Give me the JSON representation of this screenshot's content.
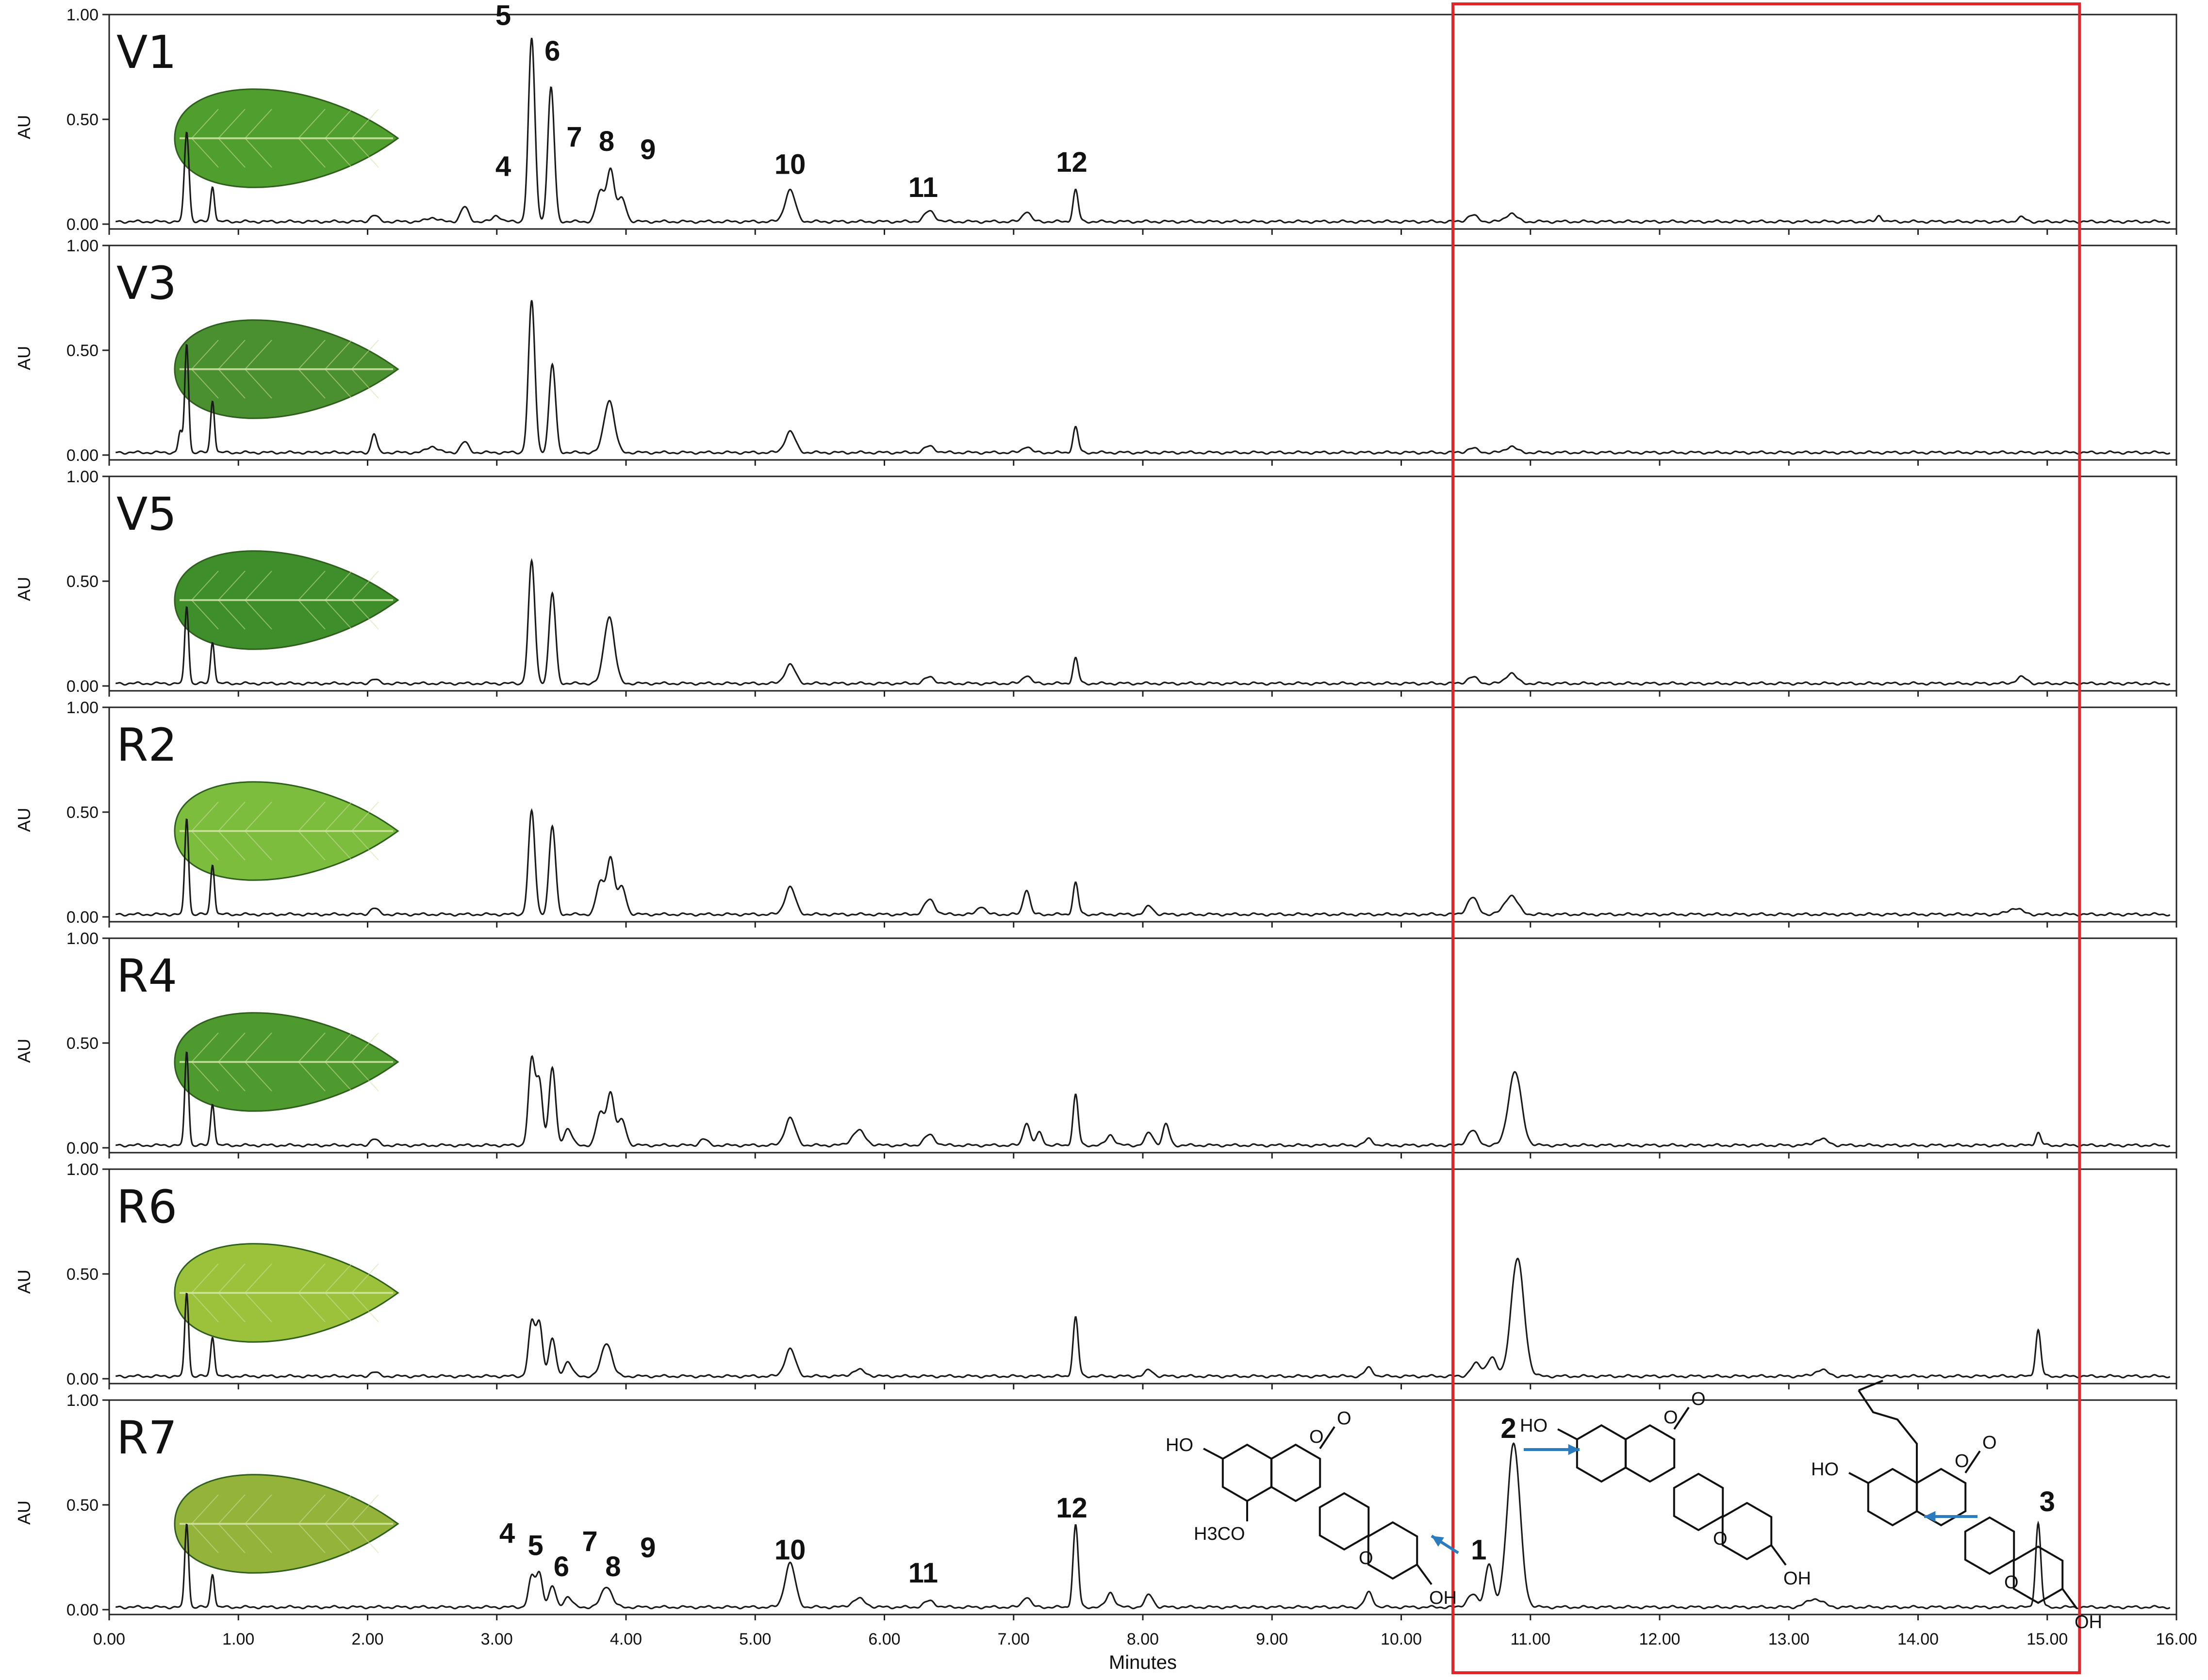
{
  "chart_data": {
    "type": "line",
    "xlabel": "Minutes",
    "ylabel": "AU",
    "xlim": [
      0,
      16
    ],
    "ylim": [
      0,
      1
    ],
    "x_ticks": [
      "0.00",
      "1.00",
      "2.00",
      "3.00",
      "4.00",
      "5.00",
      "6.00",
      "7.00",
      "8.00",
      "9.00",
      "10.00",
      "11.00",
      "12.00",
      "13.00",
      "14.00",
      "15.00",
      "16.00"
    ],
    "y_ticks": [
      "0.00",
      "0.50",
      "1.00"
    ],
    "highlight": {
      "x_range": [
        10.4,
        15.25
      ],
      "color": "#e0262b"
    },
    "panels": [
      {
        "name": "V1",
        "leaf_color": "#4f9e2e",
        "peaks": [
          [
            0.6,
            0.43,
            0.018
          ],
          [
            0.8,
            0.17,
            0.015
          ],
          [
            2.05,
            0.03,
            0.03
          ],
          [
            2.5,
            0.02,
            0.04
          ],
          [
            2.75,
            0.07,
            0.03
          ],
          [
            3.0,
            0.03,
            0.03
          ],
          [
            3.27,
            0.87,
            0.025
          ],
          [
            3.42,
            0.64,
            0.025
          ],
          [
            3.8,
            0.14,
            0.03
          ],
          [
            3.88,
            0.25,
            0.03
          ],
          [
            3.97,
            0.11,
            0.03
          ],
          [
            5.27,
            0.15,
            0.04
          ],
          [
            6.35,
            0.05,
            0.04
          ],
          [
            7.1,
            0.05,
            0.03
          ],
          [
            7.48,
            0.15,
            0.02
          ],
          [
            10.55,
            0.03,
            0.04
          ],
          [
            10.85,
            0.04,
            0.04
          ],
          [
            13.7,
            0.03,
            0.02
          ],
          [
            14.8,
            0.02,
            0.03
          ]
        ],
        "labels": [
          {
            "text": "4",
            "x": 3.05,
            "y": 0.23
          },
          {
            "text": "5",
            "x": 3.05,
            "y": 0.95
          },
          {
            "text": "6",
            "x": 3.43,
            "y": 0.78
          },
          {
            "text": "7",
            "x": 3.6,
            "y": 0.37
          },
          {
            "text": "8",
            "x": 3.85,
            "y": 0.35
          },
          {
            "text": "9",
            "x": 4.17,
            "y": 0.31
          },
          {
            "text": "10",
            "x": 5.27,
            "y": 0.24
          },
          {
            "text": "11",
            "x": 6.3,
            "y": 0.13
          },
          {
            "text": "12",
            "x": 7.45,
            "y": 0.25
          }
        ]
      },
      {
        "name": "V3",
        "leaf_color": "#4a8f30",
        "peaks": [
          [
            0.55,
            0.1,
            0.015
          ],
          [
            0.6,
            0.52,
            0.015
          ],
          [
            0.8,
            0.25,
            0.015
          ],
          [
            2.05,
            0.09,
            0.02
          ],
          [
            2.5,
            0.03,
            0.04
          ],
          [
            2.75,
            0.05,
            0.03
          ],
          [
            3.27,
            0.72,
            0.025
          ],
          [
            3.43,
            0.42,
            0.025
          ],
          [
            3.87,
            0.25,
            0.04
          ],
          [
            5.27,
            0.1,
            0.04
          ],
          [
            6.35,
            0.03,
            0.04
          ],
          [
            7.1,
            0.03,
            0.03
          ],
          [
            7.48,
            0.12,
            0.02
          ],
          [
            10.55,
            0.02,
            0.04
          ],
          [
            10.85,
            0.03,
            0.04
          ]
        ],
        "labels": []
      },
      {
        "name": "V5",
        "leaf_color": "#3f8e2c",
        "peaks": [
          [
            0.6,
            0.37,
            0.015
          ],
          [
            0.8,
            0.2,
            0.015
          ],
          [
            2.05,
            0.02,
            0.03
          ],
          [
            3.27,
            0.58,
            0.025
          ],
          [
            3.43,
            0.43,
            0.025
          ],
          [
            3.87,
            0.32,
            0.04
          ],
          [
            5.27,
            0.09,
            0.04
          ],
          [
            6.35,
            0.03,
            0.04
          ],
          [
            7.1,
            0.04,
            0.03
          ],
          [
            7.48,
            0.12,
            0.02
          ],
          [
            10.55,
            0.03,
            0.04
          ],
          [
            10.85,
            0.05,
            0.04
          ],
          [
            14.8,
            0.03,
            0.04
          ]
        ],
        "labels": []
      },
      {
        "name": "R2",
        "leaf_color": "#7cbd3e",
        "peaks": [
          [
            0.6,
            0.46,
            0.015
          ],
          [
            0.8,
            0.24,
            0.015
          ],
          [
            2.05,
            0.03,
            0.03
          ],
          [
            3.27,
            0.49,
            0.025
          ],
          [
            3.43,
            0.42,
            0.025
          ],
          [
            3.8,
            0.15,
            0.03
          ],
          [
            3.88,
            0.27,
            0.03
          ],
          [
            3.97,
            0.13,
            0.03
          ],
          [
            5.27,
            0.13,
            0.04
          ],
          [
            6.35,
            0.07,
            0.04
          ],
          [
            6.75,
            0.04,
            0.03
          ],
          [
            7.1,
            0.12,
            0.025
          ],
          [
            7.48,
            0.15,
            0.02
          ],
          [
            8.05,
            0.04,
            0.03
          ],
          [
            10.55,
            0.08,
            0.04
          ],
          [
            10.85,
            0.09,
            0.05
          ],
          [
            14.75,
            0.03,
            0.05
          ]
        ],
        "labels": []
      },
      {
        "name": "R4",
        "leaf_color": "#4e9a2e",
        "peaks": [
          [
            0.6,
            0.45,
            0.015
          ],
          [
            0.8,
            0.2,
            0.015
          ],
          [
            2.05,
            0.03,
            0.03
          ],
          [
            3.27,
            0.4,
            0.025
          ],
          [
            3.33,
            0.3,
            0.025
          ],
          [
            3.43,
            0.37,
            0.025
          ],
          [
            3.55,
            0.08,
            0.03
          ],
          [
            3.8,
            0.15,
            0.03
          ],
          [
            3.88,
            0.25,
            0.03
          ],
          [
            3.97,
            0.12,
            0.03
          ],
          [
            4.6,
            0.03,
            0.03
          ],
          [
            5.27,
            0.13,
            0.04
          ],
          [
            5.8,
            0.07,
            0.05
          ],
          [
            6.35,
            0.05,
            0.04
          ],
          [
            7.1,
            0.11,
            0.025
          ],
          [
            7.2,
            0.06,
            0.025
          ],
          [
            7.48,
            0.24,
            0.02
          ],
          [
            7.75,
            0.05,
            0.03
          ],
          [
            8.05,
            0.06,
            0.03
          ],
          [
            8.18,
            0.1,
            0.025
          ],
          [
            9.75,
            0.03,
            0.03
          ],
          [
            10.55,
            0.07,
            0.04
          ],
          [
            10.88,
            0.35,
            0.05
          ],
          [
            13.25,
            0.03,
            0.05
          ],
          [
            14.93,
            0.06,
            0.02
          ]
        ],
        "labels": []
      },
      {
        "name": "R6",
        "leaf_color": "#9cc23c",
        "peaks": [
          [
            0.6,
            0.4,
            0.015
          ],
          [
            0.8,
            0.19,
            0.015
          ],
          [
            2.05,
            0.02,
            0.03
          ],
          [
            3.27,
            0.25,
            0.025
          ],
          [
            3.33,
            0.25,
            0.025
          ],
          [
            3.43,
            0.18,
            0.025
          ],
          [
            3.55,
            0.07,
            0.03
          ],
          [
            3.85,
            0.16,
            0.04
          ],
          [
            5.27,
            0.13,
            0.04
          ],
          [
            5.8,
            0.03,
            0.05
          ],
          [
            7.48,
            0.28,
            0.02
          ],
          [
            8.05,
            0.03,
            0.03
          ],
          [
            9.75,
            0.04,
            0.03
          ],
          [
            10.58,
            0.06,
            0.04
          ],
          [
            10.7,
            0.09,
            0.035
          ],
          [
            10.9,
            0.56,
            0.05
          ],
          [
            13.25,
            0.03,
            0.05
          ],
          [
            14.93,
            0.22,
            0.02
          ]
        ],
        "labels": []
      },
      {
        "name": "R7",
        "leaf_color": "#94b33a",
        "peaks": [
          [
            0.6,
            0.4,
            0.015
          ],
          [
            0.8,
            0.16,
            0.015
          ],
          [
            3.27,
            0.14,
            0.025
          ],
          [
            3.33,
            0.16,
            0.025
          ],
          [
            3.43,
            0.1,
            0.025
          ],
          [
            3.55,
            0.05,
            0.03
          ],
          [
            3.85,
            0.1,
            0.04
          ],
          [
            5.27,
            0.21,
            0.04
          ],
          [
            5.8,
            0.04,
            0.05
          ],
          [
            6.35,
            0.03,
            0.04
          ],
          [
            7.1,
            0.05,
            0.03
          ],
          [
            7.48,
            0.39,
            0.02
          ],
          [
            7.75,
            0.07,
            0.03
          ],
          [
            8.05,
            0.06,
            0.03
          ],
          [
            9.75,
            0.07,
            0.03
          ],
          [
            10.55,
            0.06,
            0.04
          ],
          [
            10.68,
            0.21,
            0.03
          ],
          [
            10.87,
            0.78,
            0.05
          ],
          [
            13.2,
            0.04,
            0.06
          ],
          [
            14.93,
            0.4,
            0.02
          ]
        ],
        "labels": [
          {
            "text": "4",
            "x": 3.08,
            "y": 0.32
          },
          {
            "text": "5",
            "x": 3.3,
            "y": 0.26
          },
          {
            "text": "6",
            "x": 3.5,
            "y": 0.16
          },
          {
            "text": "7",
            "x": 3.72,
            "y": 0.28
          },
          {
            "text": "8",
            "x": 3.9,
            "y": 0.16
          },
          {
            "text": "9",
            "x": 4.17,
            "y": 0.25
          },
          {
            "text": "10",
            "x": 5.27,
            "y": 0.24
          },
          {
            "text": "11",
            "x": 6.3,
            "y": 0.13
          },
          {
            "text": "12",
            "x": 7.45,
            "y": 0.44
          },
          {
            "text": "1",
            "x": 10.6,
            "y": 0.24
          },
          {
            "text": "2",
            "x": 10.83,
            "y": 0.82
          },
          {
            "text": "3",
            "x": 15.0,
            "y": 0.47
          }
        ]
      }
    ],
    "structures": [
      {
        "id": "structure-1",
        "labels": {
          "ho": "HO",
          "och3": "H3CO",
          "oh": "OH"
        }
      },
      {
        "id": "structure-2",
        "labels": {
          "ho": "HO",
          "oh": "OH"
        }
      },
      {
        "id": "structure-3",
        "labels": {
          "ho": "HO",
          "oh": "OH"
        }
      }
    ],
    "structure_atom": "O",
    "arrow_color": "#2b7bbf"
  }
}
